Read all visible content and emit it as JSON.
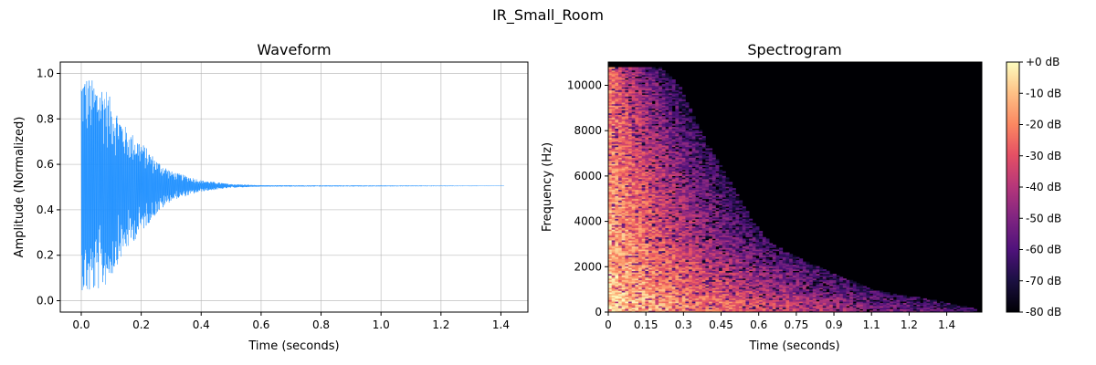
{
  "figure": {
    "suptitle": "IR_Small_Room"
  },
  "chart_data": [
    {
      "type": "line",
      "title": "Waveform",
      "xlabel": "Time (seconds)",
      "ylabel": "Amplitude (Normalized)",
      "xlim": [
        -0.07,
        1.49
      ],
      "ylim": [
        -0.05,
        1.05
      ],
      "x_ticks": [
        "0.0",
        "0.2",
        "0.4",
        "0.6",
        "0.8",
        "1.0",
        "1.2",
        "1.4"
      ],
      "x_tick_values": [
        0.0,
        0.2,
        0.4,
        0.6,
        0.8,
        1.0,
        1.2,
        1.4
      ],
      "y_ticks": [
        "0.0",
        "0.2",
        "0.4",
        "0.6",
        "0.8",
        "1.0"
      ],
      "y_tick_values": [
        0.0,
        0.2,
        0.4,
        0.6,
        0.8,
        1.0
      ],
      "grid": true,
      "series": [
        {
          "color": "#1e90ff",
          "x_range": [
            0.0,
            1.41
          ],
          "baseline": 0.505,
          "envelope": [
            {
              "t": 0.0,
              "lo": 0.05,
              "hi": 1.0
            },
            {
              "t": 0.02,
              "lo": 0.02,
              "hi": 0.99
            },
            {
              "t": 0.05,
              "lo": 0.04,
              "hi": 0.96
            },
            {
              "t": 0.08,
              "lo": 0.06,
              "hi": 0.95
            },
            {
              "t": 0.1,
              "lo": 0.1,
              "hi": 0.88
            },
            {
              "t": 0.12,
              "lo": 0.16,
              "hi": 0.84
            },
            {
              "t": 0.15,
              "lo": 0.22,
              "hi": 0.76
            },
            {
              "t": 0.2,
              "lo": 0.3,
              "hi": 0.7
            },
            {
              "t": 0.25,
              "lo": 0.38,
              "hi": 0.62
            },
            {
              "t": 0.3,
              "lo": 0.44,
              "hi": 0.57
            },
            {
              "t": 0.4,
              "lo": 0.48,
              "hi": 0.53
            },
            {
              "t": 0.5,
              "lo": 0.497,
              "hi": 0.513
            },
            {
              "t": 0.6,
              "lo": 0.502,
              "hi": 0.508
            },
            {
              "t": 1.41,
              "lo": 0.504,
              "hi": 0.506
            }
          ]
        }
      ]
    },
    {
      "type": "heatmap",
      "title": "Spectrogram",
      "xlabel": "Time (seconds)",
      "ylabel": "Frequency (Hz)",
      "xlim": [
        0,
        1.49
      ],
      "ylim": [
        0,
        11025
      ],
      "x_ticks": [
        "0",
        "0.15",
        "0.3",
        "0.45",
        "0.6",
        "0.75",
        "0.9",
        "1.1",
        "1.2",
        "1.4"
      ],
      "x_tick_values": [
        0,
        0.15,
        0.3,
        0.45,
        0.6,
        0.75,
        0.9,
        1.05,
        1.2,
        1.35
      ],
      "y_ticks": [
        "0",
        "2000",
        "4000",
        "6000",
        "8000",
        "10000"
      ],
      "y_tick_values": [
        0,
        2000,
        4000,
        6000,
        8000,
        10000
      ],
      "colormap": "magma",
      "colorbar": {
        "labels": [
          "+0 dB",
          "-10 dB",
          "-20 dB",
          "-30 dB",
          "-40 dB",
          "-50 dB",
          "-60 dB",
          "-70 dB",
          "-80 dB"
        ],
        "values": [
          0,
          -10,
          -20,
          -30,
          -40,
          -50,
          -60,
          -70,
          -80
        ],
        "range": [
          -80,
          0
        ]
      },
      "decay_profile": [
        {
          "f": 0,
          "edge_t": 1.45
        },
        {
          "f": 500,
          "edge_t": 1.25
        },
        {
          "f": 1000,
          "edge_t": 1.0
        },
        {
          "f": 2000,
          "edge_t": 0.8
        },
        {
          "f": 3000,
          "edge_t": 0.62
        },
        {
          "f": 4000,
          "edge_t": 0.55
        },
        {
          "f": 6000,
          "edge_t": 0.45
        },
        {
          "f": 8000,
          "edge_t": 0.35
        },
        {
          "f": 10000,
          "edge_t": 0.27
        },
        {
          "f": 10800,
          "edge_t": 0.2
        }
      ]
    }
  ]
}
